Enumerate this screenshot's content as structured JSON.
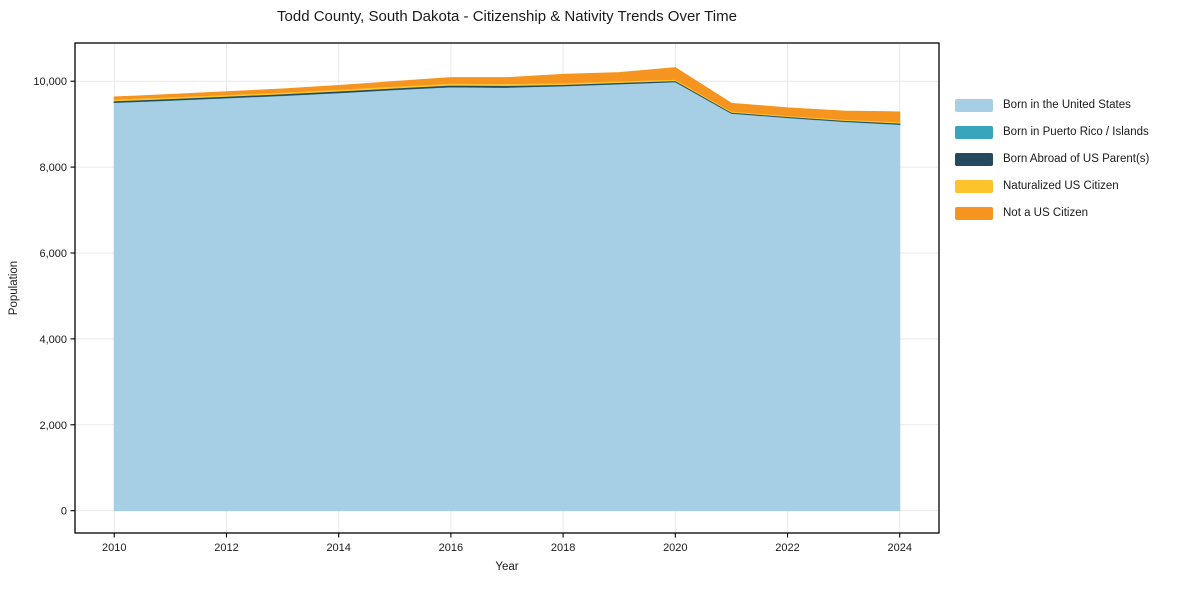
{
  "title": "Todd County, South Dakota - Citizenship & Nativity Trends Over Time",
  "chart_data": {
    "type": "area",
    "stacked": true,
    "title": "Todd County, South Dakota - Citizenship & Nativity Trends Over Time",
    "xlabel": "Year",
    "ylabel": "Population",
    "x": [
      2010,
      2011,
      2012,
      2013,
      2014,
      2015,
      2016,
      2017,
      2018,
      2019,
      2020,
      2021,
      2022,
      2023,
      2024
    ],
    "series": [
      {
        "name": "Born in the United States",
        "color": "#a6cfe5",
        "values": [
          9505,
          9555,
          9610,
          9665,
          9730,
          9800,
          9865,
          9855,
          9890,
          9935,
          9985,
          9250,
          9150,
          9060,
          8990
        ]
      },
      {
        "name": "Born in Puerto Rico / Islands",
        "color": "#39a5bd",
        "values": [
          4,
          4,
          5,
          5,
          5,
          6,
          6,
          6,
          5,
          5,
          5,
          8,
          8,
          9,
          10
        ]
      },
      {
        "name": "Born Abroad of US Parent(s)",
        "color": "#254a5d",
        "values": [
          35,
          35,
          35,
          36,
          36,
          36,
          38,
          38,
          30,
          30,
          25,
          20,
          20,
          20,
          25
        ]
      },
      {
        "name": "Naturalized US Citizen",
        "color": "#fcc32d",
        "values": [
          38,
          38,
          38,
          38,
          40,
          42,
          44,
          44,
          36,
          35,
          30,
          25,
          24,
          24,
          30
        ]
      },
      {
        "name": "Not a US Citizen",
        "color": "#f5941f",
        "values": [
          50,
          58,
          66,
          76,
          90,
          108,
          132,
          140,
          198,
          195,
          272,
          182,
          178,
          192,
          230
        ]
      }
    ],
    "x_ticks": [
      2010,
      2012,
      2014,
      2016,
      2018,
      2020,
      2022,
      2024
    ],
    "x_tick_labels": [
      "2010",
      "2012",
      "2014",
      "2016",
      "2018",
      "2020",
      "2022",
      "2024"
    ],
    "y_ticks": [
      0,
      2000,
      4000,
      6000,
      8000,
      10000
    ],
    "y_tick_labels": [
      "0",
      "2,000",
      "4,000",
      "6,000",
      "8,000",
      "10,000"
    ],
    "xlim": [
      2009.3,
      2024.7
    ],
    "ylim": [
      -520,
      10890
    ],
    "grid": true,
    "gridline_color": "#e9e9e9",
    "spine_color": "#000000",
    "legend_position": "outside-right"
  }
}
